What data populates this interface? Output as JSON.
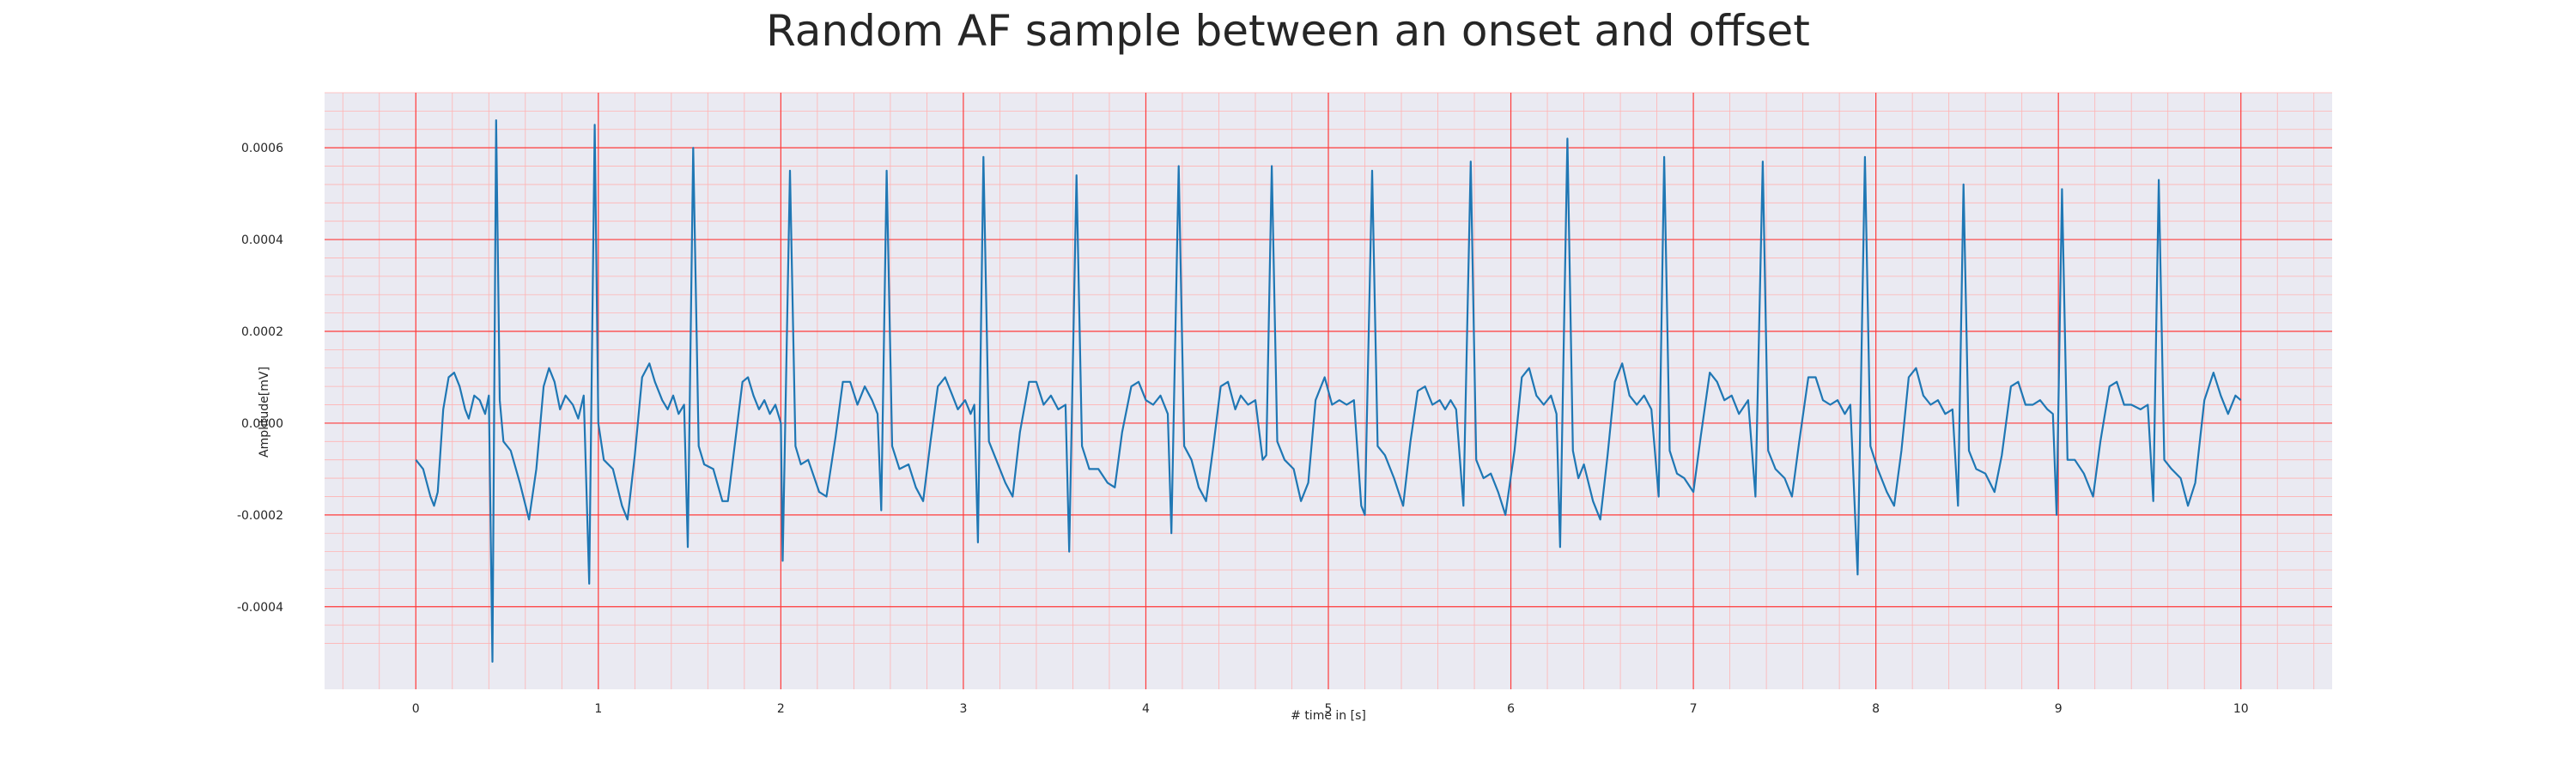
{
  "chart_data": {
    "type": "line",
    "title": "Random AF sample between an onset and offset",
    "xlabel": "# time in [s]",
    "ylabel": "Amplitude[mV]",
    "xlim": [
      -0.5,
      10.5
    ],
    "ylim": [
      -0.00058,
      0.00072
    ],
    "grid": true,
    "legend": "none",
    "x_ticks": [
      0,
      1,
      2,
      3,
      4,
      5,
      6,
      7,
      8,
      9,
      10
    ],
    "x_tick_labels": [
      "0",
      "1",
      "2",
      "3",
      "4",
      "5",
      "6",
      "7",
      "8",
      "9",
      "10"
    ],
    "y_ticks": [
      -0.0004,
      -0.0002,
      0.0,
      0.0002,
      0.0004,
      0.0006
    ],
    "y_tick_labels": [
      "-0.0004",
      "-0.0002",
      "0.0000",
      "0.0002",
      "0.0004",
      "0.0006"
    ],
    "colors": {
      "line": "#1f77b4",
      "plot_bg": "#eaeaf2",
      "major_grid": "#ff3b3b",
      "minor_grid": "#ffb3b3"
    },
    "series": [
      {
        "name": "",
        "points": [
          [
            0.0,
            -8e-05
          ],
          [
            0.04,
            -0.0001
          ],
          [
            0.08,
            -0.00016
          ],
          [
            0.1,
            -0.00018
          ],
          [
            0.12,
            -0.00015
          ],
          [
            0.15,
            3e-05
          ],
          [
            0.18,
            0.0001
          ],
          [
            0.21,
            0.00011
          ],
          [
            0.24,
            8e-05
          ],
          [
            0.27,
            3e-05
          ],
          [
            0.29,
            1e-05
          ],
          [
            0.32,
            6e-05
          ],
          [
            0.35,
            5e-05
          ],
          [
            0.38,
            2e-05
          ],
          [
            0.4,
            6e-05
          ],
          [
            0.42,
            -0.00052
          ],
          [
            0.44,
            0.00066
          ],
          [
            0.46,
            5e-05
          ],
          [
            0.48,
            -4e-05
          ],
          [
            0.52,
            -6e-05
          ],
          [
            0.57,
            -0.00013
          ],
          [
            0.62,
            -0.00021
          ],
          [
            0.66,
            -0.0001
          ],
          [
            0.7,
            8e-05
          ],
          [
            0.73,
            0.00012
          ],
          [
            0.76,
            9e-05
          ],
          [
            0.79,
            3e-05
          ],
          [
            0.82,
            6e-05
          ],
          [
            0.86,
            4e-05
          ],
          [
            0.89,
            1e-05
          ],
          [
            0.92,
            6e-05
          ],
          [
            0.95,
            -0.00035
          ],
          [
            0.98,
            0.00065
          ],
          [
            1.0,
            0.0
          ],
          [
            1.03,
            -8e-05
          ],
          [
            1.08,
            -0.0001
          ],
          [
            1.13,
            -0.00018
          ],
          [
            1.16,
            -0.00021
          ],
          [
            1.2,
            -7e-05
          ],
          [
            1.24,
            0.0001
          ],
          [
            1.28,
            0.00013
          ],
          [
            1.31,
            9e-05
          ],
          [
            1.35,
            5e-05
          ],
          [
            1.38,
            3e-05
          ],
          [
            1.41,
            6e-05
          ],
          [
            1.44,
            2e-05
          ],
          [
            1.47,
            4e-05
          ],
          [
            1.49,
            -0.00027
          ],
          [
            1.52,
            0.0006
          ],
          [
            1.55,
            -5e-05
          ],
          [
            1.58,
            -9e-05
          ],
          [
            1.63,
            -0.0001
          ],
          [
            1.68,
            -0.00017
          ],
          [
            1.71,
            -0.00017
          ],
          [
            1.75,
            -4e-05
          ],
          [
            1.79,
            9e-05
          ],
          [
            1.82,
            0.0001
          ],
          [
            1.85,
            6e-05
          ],
          [
            1.88,
            3e-05
          ],
          [
            1.91,
            5e-05
          ],
          [
            1.94,
            2e-05
          ],
          [
            1.97,
            4e-05
          ],
          [
            2.0,
            0.0
          ],
          [
            2.01,
            -0.0003
          ],
          [
            2.05,
            0.00055
          ],
          [
            2.08,
            -5e-05
          ],
          [
            2.11,
            -9e-05
          ],
          [
            2.15,
            -8e-05
          ],
          [
            2.21,
            -0.00015
          ],
          [
            2.25,
            -0.00016
          ],
          [
            2.3,
            -3e-05
          ],
          [
            2.34,
            9e-05
          ],
          [
            2.38,
            9e-05
          ],
          [
            2.42,
            4e-05
          ],
          [
            2.46,
            8e-05
          ],
          [
            2.5,
            5e-05
          ],
          [
            2.53,
            2e-05
          ],
          [
            2.55,
            -0.00019
          ],
          [
            2.58,
            0.00055
          ],
          [
            2.61,
            -5e-05
          ],
          [
            2.65,
            -0.0001
          ],
          [
            2.7,
            -9e-05
          ],
          [
            2.74,
            -0.00014
          ],
          [
            2.78,
            -0.00017
          ],
          [
            2.82,
            -4e-05
          ],
          [
            2.86,
            8e-05
          ],
          [
            2.9,
            0.0001
          ],
          [
            2.94,
            6e-05
          ],
          [
            2.97,
            3e-05
          ],
          [
            3.01,
            5e-05
          ],
          [
            3.04,
            2e-05
          ],
          [
            3.06,
            4e-05
          ],
          [
            3.08,
            -0.00026
          ],
          [
            3.11,
            0.00058
          ],
          [
            3.14,
            -4e-05
          ],
          [
            3.18,
            -8e-05
          ],
          [
            3.23,
            -0.00013
          ],
          [
            3.27,
            -0.00016
          ],
          [
            3.31,
            -2e-05
          ],
          [
            3.36,
            9e-05
          ],
          [
            3.4,
            9e-05
          ],
          [
            3.44,
            4e-05
          ],
          [
            3.48,
            6e-05
          ],
          [
            3.52,
            3e-05
          ],
          [
            3.56,
            4e-05
          ],
          [
            3.58,
            -0.00028
          ],
          [
            3.62,
            0.00054
          ],
          [
            3.65,
            -5e-05
          ],
          [
            3.69,
            -0.0001
          ],
          [
            3.74,
            -0.0001
          ],
          [
            3.79,
            -0.00013
          ],
          [
            3.83,
            -0.00014
          ],
          [
            3.87,
            -2e-05
          ],
          [
            3.92,
            8e-05
          ],
          [
            3.96,
            9e-05
          ],
          [
            4.0,
            5e-05
          ],
          [
            4.04,
            4e-05
          ],
          [
            4.08,
            6e-05
          ],
          [
            4.12,
            2e-05
          ],
          [
            4.14,
            -0.00024
          ],
          [
            4.18,
            0.00056
          ],
          [
            4.21,
            -5e-05
          ],
          [
            4.25,
            -8e-05
          ],
          [
            4.29,
            -0.00014
          ],
          [
            4.33,
            -0.00017
          ],
          [
            4.37,
            -5e-05
          ],
          [
            4.41,
            8e-05
          ],
          [
            4.45,
            9e-05
          ],
          [
            4.49,
            3e-05
          ],
          [
            4.52,
            6e-05
          ],
          [
            4.56,
            4e-05
          ],
          [
            4.6,
            5e-05
          ],
          [
            4.64,
            -8e-05
          ],
          [
            4.66,
            -7e-05
          ],
          [
            4.69,
            0.00056
          ],
          [
            4.72,
            -4e-05
          ],
          [
            4.76,
            -8e-05
          ],
          [
            4.81,
            -0.0001
          ],
          [
            4.85,
            -0.00017
          ],
          [
            4.89,
            -0.00013
          ],
          [
            4.93,
            5e-05
          ],
          [
            4.98,
            0.0001
          ],
          [
            5.02,
            4e-05
          ],
          [
            5.06,
            5e-05
          ],
          [
            5.1,
            4e-05
          ],
          [
            5.14,
            5e-05
          ],
          [
            5.18,
            -0.00018
          ],
          [
            5.2,
            -0.0002
          ],
          [
            5.24,
            0.00055
          ],
          [
            5.27,
            -5e-05
          ],
          [
            5.31,
            -7e-05
          ],
          [
            5.36,
            -0.00012
          ],
          [
            5.41,
            -0.00018
          ],
          [
            5.45,
            -4e-05
          ],
          [
            5.49,
            7e-05
          ],
          [
            5.53,
            8e-05
          ],
          [
            5.57,
            4e-05
          ],
          [
            5.61,
            5e-05
          ],
          [
            5.64,
            3e-05
          ],
          [
            5.67,
            5e-05
          ],
          [
            5.7,
            3e-05
          ],
          [
            5.74,
            -0.00018
          ],
          [
            5.78,
            0.00057
          ],
          [
            5.81,
            -8e-05
          ],
          [
            5.85,
            -0.00012
          ],
          [
            5.89,
            -0.00011
          ],
          [
            5.93,
            -0.00015
          ],
          [
            5.97,
            -0.0002
          ],
          [
            6.02,
            -6e-05
          ],
          [
            6.06,
            0.0001
          ],
          [
            6.1,
            0.00012
          ],
          [
            6.14,
            6e-05
          ],
          [
            6.18,
            4e-05
          ],
          [
            6.22,
            6e-05
          ],
          [
            6.25,
            2e-05
          ],
          [
            6.27,
            -0.00027
          ],
          [
            6.31,
            0.00062
          ],
          [
            6.34,
            -6e-05
          ],
          [
            6.37,
            -0.00012
          ],
          [
            6.4,
            -9e-05
          ],
          [
            6.45,
            -0.00017
          ],
          [
            6.49,
            -0.00021
          ],
          [
            6.53,
            -7e-05
          ],
          [
            6.57,
            9e-05
          ],
          [
            6.61,
            0.00013
          ],
          [
            6.65,
            6e-05
          ],
          [
            6.69,
            4e-05
          ],
          [
            6.73,
            6e-05
          ],
          [
            6.77,
            3e-05
          ],
          [
            6.81,
            -0.00016
          ],
          [
            6.84,
            0.00058
          ],
          [
            6.87,
            -6e-05
          ],
          [
            6.91,
            -0.00011
          ],
          [
            6.95,
            -0.00012
          ],
          [
            7.0,
            -0.00015
          ],
          [
            7.04,
            -3e-05
          ],
          [
            7.09,
            0.00011
          ],
          [
            7.13,
            9e-05
          ],
          [
            7.17,
            5e-05
          ],
          [
            7.21,
            6e-05
          ],
          [
            7.25,
            2e-05
          ],
          [
            7.3,
            5e-05
          ],
          [
            7.34,
            -0.00016
          ],
          [
            7.38,
            0.00057
          ],
          [
            7.41,
            -6e-05
          ],
          [
            7.45,
            -0.0001
          ],
          [
            7.5,
            -0.00012
          ],
          [
            7.54,
            -0.00016
          ],
          [
            7.58,
            -4e-05
          ],
          [
            7.63,
            0.0001
          ],
          [
            7.67,
            0.0001
          ],
          [
            7.71,
            5e-05
          ],
          [
            7.75,
            4e-05
          ],
          [
            7.79,
            5e-05
          ],
          [
            7.83,
            2e-05
          ],
          [
            7.86,
            4e-05
          ],
          [
            7.9,
            -0.00033
          ],
          [
            7.94,
            0.00058
          ],
          [
            7.97,
            -5e-05
          ],
          [
            8.01,
            -0.0001
          ],
          [
            8.06,
            -0.00015
          ],
          [
            8.1,
            -0.00018
          ],
          [
            8.14,
            -6e-05
          ],
          [
            8.18,
            0.0001
          ],
          [
            8.22,
            0.00012
          ],
          [
            8.26,
            6e-05
          ],
          [
            8.3,
            4e-05
          ],
          [
            8.34,
            5e-05
          ],
          [
            8.38,
            2e-05
          ],
          [
            8.42,
            3e-05
          ],
          [
            8.45,
            -0.00018
          ],
          [
            8.48,
            0.00052
          ],
          [
            8.51,
            -6e-05
          ],
          [
            8.55,
            -0.0001
          ],
          [
            8.6,
            -0.00011
          ],
          [
            8.65,
            -0.00015
          ],
          [
            8.69,
            -7e-05
          ],
          [
            8.74,
            8e-05
          ],
          [
            8.78,
            9e-05
          ],
          [
            8.82,
            4e-05
          ],
          [
            8.86,
            4e-05
          ],
          [
            8.9,
            5e-05
          ],
          [
            8.94,
            3e-05
          ],
          [
            8.97,
            2e-05
          ],
          [
            8.99,
            -0.0002
          ],
          [
            9.02,
            0.00051
          ],
          [
            9.05,
            -8e-05
          ],
          [
            9.09,
            -8e-05
          ],
          [
            9.14,
            -0.00011
          ],
          [
            9.19,
            -0.00016
          ],
          [
            9.23,
            -4e-05
          ],
          [
            9.28,
            8e-05
          ],
          [
            9.32,
            9e-05
          ],
          [
            9.36,
            4e-05
          ],
          [
            9.4,
            4e-05
          ],
          [
            9.45,
            3e-05
          ],
          [
            9.49,
            4e-05
          ],
          [
            9.52,
            -0.00017
          ],
          [
            9.55,
            0.00053
          ],
          [
            9.58,
            -8e-05
          ],
          [
            9.62,
            -0.0001
          ],
          [
            9.67,
            -0.00012
          ],
          [
            9.71,
            -0.00018
          ],
          [
            9.75,
            -0.00013
          ],
          [
            9.8,
            5e-05
          ],
          [
            9.85,
            0.00011
          ],
          [
            9.89,
            6e-05
          ],
          [
            9.93,
            2e-05
          ],
          [
            9.97,
            6e-05
          ],
          [
            10.0,
            5e-05
          ]
        ]
      }
    ]
  }
}
